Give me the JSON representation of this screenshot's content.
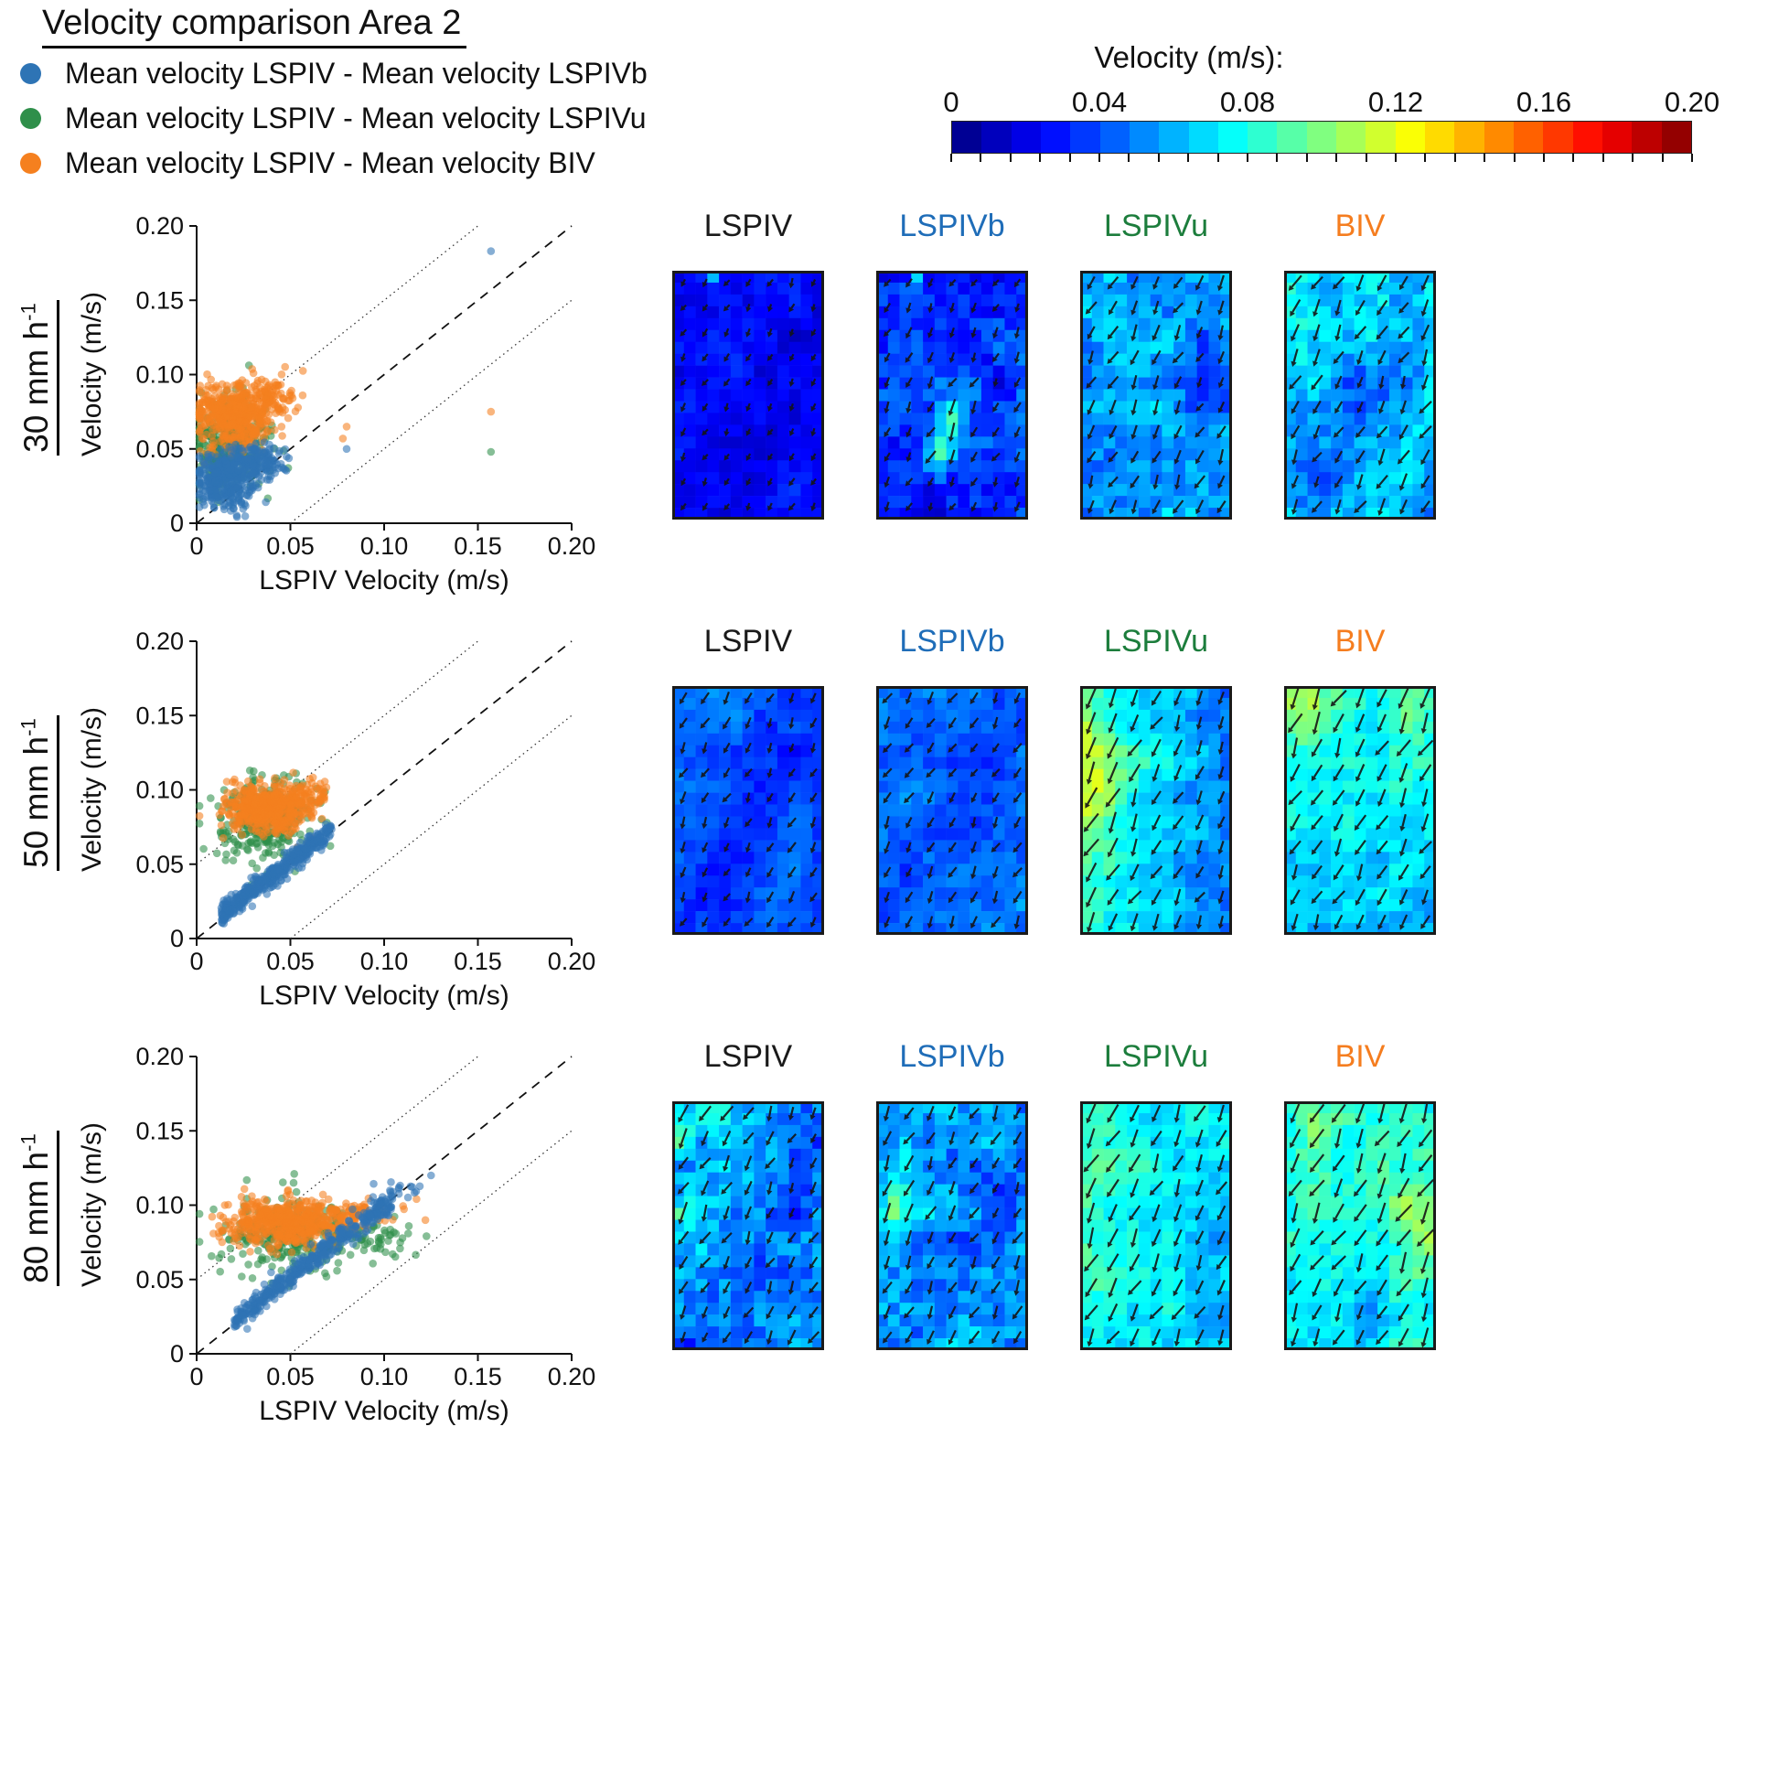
{
  "title": "Velocity comparison Area 2",
  "legend": {
    "items": [
      {
        "label": "Mean velocity LSPIV - Mean velocity LSPIVb",
        "color": "#2e74b5"
      },
      {
        "label": "Mean velocity LSPIV - Mean velocity LSPIVu",
        "color": "#2f8f4a"
      },
      {
        "label": "Mean velocity LSPIV - Mean velocity BIV",
        "color": "#f5801f"
      }
    ]
  },
  "colorbar": {
    "title": "Velocity (m/s):",
    "tick_labels": [
      "0",
      "0.04",
      "0.08",
      "0.12",
      "0.16",
      "0.20"
    ],
    "min": 0,
    "max": 0.2,
    "segments": 25,
    "colormap": "jet"
  },
  "rows": [
    {
      "label": "30 mm h",
      "label_sup": "-1",
      "panels": [
        {
          "name": "LSPIV",
          "color": "#1a1a1a"
        },
        {
          "name": "LSPIVb",
          "color": "#1f6db8"
        },
        {
          "name": "LSPIVu",
          "color": "#1c7d3c"
        },
        {
          "name": "BIV",
          "color": "#f57d1f"
        }
      ]
    },
    {
      "label": "50 mm h",
      "label_sup": "-1",
      "panels": [
        {
          "name": "LSPIV",
          "color": "#1a1a1a"
        },
        {
          "name": "LSPIVb",
          "color": "#1f6db8"
        },
        {
          "name": "LSPIVu",
          "color": "#1c7d3c"
        },
        {
          "name": "BIV",
          "color": "#f57d1f"
        }
      ]
    },
    {
      "label": "80 mm h",
      "label_sup": "-1",
      "panels": [
        {
          "name": "LSPIV",
          "color": "#1a1a1a"
        },
        {
          "name": "LSPIVb",
          "color": "#1f6db8"
        },
        {
          "name": "LSPIVu",
          "color": "#1c7d3c"
        },
        {
          "name": "BIV",
          "color": "#f57d1f"
        }
      ]
    }
  ],
  "chart_data": [
    {
      "rain_rate": "30 mm h-1",
      "scatter": {
        "type": "scatter",
        "xlabel": "LSPIV Velocity (m/s)",
        "ylabel": "Velocity (m/s)",
        "xlim": [
          0,
          0.2
        ],
        "ylim": [
          0,
          0.2
        ],
        "ticks": [
          0,
          0.05,
          0.1,
          0.15,
          0.2
        ],
        "tick_labels": [
          "0",
          "0.05",
          "0.10",
          "0.15",
          "0.20"
        ],
        "reference_lines": {
          "identity": "dashed",
          "offset_band": 0.05
        },
        "series": [
          {
            "name": "LSPIV vs LSPIVb",
            "color": "#2e74b5",
            "clusters": [
              {
                "type": "gauss",
                "cx": 0.015,
                "cy": 0.028,
                "sx": 0.008,
                "sy": 0.01,
                "n": 330
              },
              {
                "type": "gauss",
                "cx": 0.032,
                "cy": 0.041,
                "sx": 0.008,
                "sy": 0.006,
                "n": 140
              }
            ],
            "outliers": [
              [
                0.157,
                0.183
              ],
              [
                0.08,
                0.05
              ]
            ]
          },
          {
            "name": "LSPIV vs LSPIVu",
            "color": "#2f8f4a",
            "clusters": [
              {
                "type": "gauss",
                "cx": 0.018,
                "cy": 0.053,
                "sx": 0.01,
                "sy": 0.014,
                "n": 320
              }
            ],
            "outliers": [
              [
                0.157,
                0.048
              ]
            ]
          },
          {
            "name": "LSPIV vs BIV",
            "color": "#f5801f",
            "clusters": [
              {
                "type": "gauss",
                "cx": 0.02,
                "cy": 0.073,
                "sx": 0.011,
                "sy": 0.011,
                "n": 460
              },
              {
                "type": "gauss",
                "cx": 0.036,
                "cy": 0.086,
                "sx": 0.008,
                "sy": 0.007,
                "n": 80
              }
            ],
            "outliers": [
              [
                0.157,
                0.075
              ],
              [
                0.08,
                0.065
              ],
              [
                0.078,
                0.057
              ]
            ]
          }
        ]
      },
      "heatmaps": [
        {
          "name": "LSPIV",
          "mean": 0.026,
          "noise": 0.006,
          "blob": 0.007,
          "band": [
            1.3,
            0.008
          ],
          "spots": [
            [
              0.28,
              0.04,
              0.13,
              0.012
            ]
          ]
        },
        {
          "name": "LSPIVb",
          "mean": 0.034,
          "noise": 0.011,
          "blob": 0.011,
          "spots": [
            [
              0.28,
              0.04,
              0.13,
              0.012
            ],
            [
              0.5,
              0.6,
              0.05,
              0.07
            ],
            [
              0.42,
              0.75,
              0.045,
              0.05
            ],
            [
              0.62,
              0.5,
              0.035,
              0.05
            ]
          ]
        },
        {
          "name": "LSPIVu",
          "mean": 0.057,
          "noise": 0.011,
          "blob": 0.012,
          "spots": [
            [
              0.8,
              0.45,
              -0.02,
              0.12
            ],
            [
              0.2,
              0.15,
              0.012,
              0.1
            ]
          ]
        },
        {
          "name": "BIV",
          "mean": 0.063,
          "noise": 0.011,
          "blob": 0.012,
          "spots": [
            [
              0.55,
              0.5,
              -0.025,
              0.13
            ],
            [
              0.2,
              0.8,
              -0.015,
              0.1
            ],
            [
              0.1,
              0.1,
              0.015,
              0.08
            ]
          ]
        }
      ]
    },
    {
      "rain_rate": "50 mm h-1",
      "scatter": {
        "type": "scatter",
        "xlabel": "LSPIV Velocity (m/s)",
        "ylabel": "Velocity (m/s)",
        "xlim": [
          0,
          0.2
        ],
        "ylim": [
          0,
          0.2
        ],
        "ticks": [
          0,
          0.05,
          0.1,
          0.15,
          0.2
        ],
        "tick_labels": [
          "0",
          "0.05",
          "0.10",
          "0.15",
          "0.20"
        ],
        "reference_lines": {
          "identity": "dashed",
          "offset_band": 0.05
        },
        "series": [
          {
            "name": "LSPIV vs LSPIVb",
            "color": "#2e74b5",
            "clusters": [
              {
                "type": "line",
                "x0": 0.013,
                "x1": 0.072,
                "slope": 0.95,
                "intercept": 0.004,
                "jitter": 0.0035,
                "n": 450
              }
            ],
            "outliers": []
          },
          {
            "name": "LSPIV vs LSPIVu",
            "color": "#2f8f4a",
            "clusters": [
              {
                "type": "gauss",
                "cx": 0.037,
                "cy": 0.079,
                "sx": 0.012,
                "sy": 0.013,
                "n": 330
              }
            ],
            "outliers": []
          },
          {
            "name": "LSPIV vs BIV",
            "color": "#f5801f",
            "clusters": [
              {
                "type": "gauss",
                "cx": 0.038,
                "cy": 0.087,
                "sx": 0.011,
                "sy": 0.008,
                "n": 480
              },
              {
                "type": "gauss",
                "cx": 0.058,
                "cy": 0.096,
                "sx": 0.008,
                "sy": 0.005,
                "n": 70
              }
            ],
            "outliers": []
          }
        ]
      },
      "heatmaps": [
        {
          "name": "LSPIV",
          "mean": 0.043,
          "noise": 0.006,
          "blob": 0.007,
          "band": [
            1.0,
            0.012
          ],
          "grady": -0.003
        },
        {
          "name": "LSPIVb",
          "mean": 0.048,
          "noise": 0.007,
          "blob": 0.008,
          "band": [
            1.0,
            0.008
          ]
        },
        {
          "name": "LSPIVu",
          "mean": 0.068,
          "noise": 0.008,
          "blob": 0.01,
          "gradx": -0.02,
          "spots": [
            [
              0.08,
              0.35,
              0.03,
              0.18
            ]
          ]
        },
        {
          "name": "BIV",
          "mean": 0.072,
          "noise": 0.008,
          "blob": 0.01,
          "grady": -0.01,
          "spots": [
            [
              0.12,
              0.06,
              0.025,
              0.12
            ],
            [
              0.85,
              0.07,
              0.02,
              0.1
            ]
          ]
        }
      ]
    },
    {
      "rain_rate": "80 mm h-1",
      "scatter": {
        "type": "scatter",
        "xlabel": "LSPIV Velocity (m/s)",
        "ylabel": "Velocity (m/s)",
        "xlim": [
          0,
          0.2
        ],
        "ylim": [
          0,
          0.2
        ],
        "ticks": [
          0,
          0.05,
          0.1,
          0.15,
          0.2
        ],
        "tick_labels": [
          "0",
          "0.05",
          "0.10",
          "0.15",
          "0.20"
        ],
        "reference_lines": {
          "identity": "dashed",
          "offset_band": 0.05
        },
        "series": [
          {
            "name": "LSPIV vs LSPIVb",
            "color": "#2e74b5",
            "clusters": [
              {
                "type": "line",
                "x0": 0.02,
                "x1": 0.105,
                "slope": 0.97,
                "intercept": 0.003,
                "jitter": 0.004,
                "n": 420
              },
              {
                "type": "gauss",
                "cx": 0.112,
                "cy": 0.112,
                "sx": 0.006,
                "sy": 0.005,
                "n": 12
              }
            ],
            "outliers": [
              [
                0.125,
                0.12
              ]
            ]
          },
          {
            "name": "LSPIV vs LSPIVu",
            "color": "#2f8f4a",
            "clusters": [
              {
                "type": "gauss",
                "cx": 0.05,
                "cy": 0.08,
                "sx": 0.018,
                "sy": 0.012,
                "n": 300
              },
              {
                "type": "gauss",
                "cx": 0.092,
                "cy": 0.078,
                "sx": 0.012,
                "sy": 0.007,
                "n": 55
              }
            ],
            "outliers": []
          },
          {
            "name": "LSPIV vs BIV",
            "color": "#f5801f",
            "clusters": [
              {
                "type": "gauss",
                "cx": 0.045,
                "cy": 0.088,
                "sx": 0.015,
                "sy": 0.008,
                "n": 460
              },
              {
                "type": "gauss",
                "cx": 0.08,
                "cy": 0.093,
                "sx": 0.012,
                "sy": 0.006,
                "n": 90
              }
            ],
            "outliers": [
              [
                0.122,
                0.09
              ]
            ]
          }
        ]
      },
      "heatmaps": [
        {
          "name": "LSPIV",
          "mean": 0.055,
          "noise": 0.013,
          "blob": 0.012,
          "band": [
            1.2,
            0.016
          ],
          "spots": [
            [
              0.07,
              0.45,
              0.05,
              0.05
            ],
            [
              0.05,
              0.1,
              0.035,
              0.06
            ],
            [
              0.3,
              0.06,
              0.025,
              0.08
            ]
          ]
        },
        {
          "name": "LSPIVb",
          "mean": 0.057,
          "noise": 0.012,
          "blob": 0.012,
          "band": [
            1.2,
            0.012
          ],
          "spots": [
            [
              0.12,
              0.45,
              0.04,
              0.07
            ]
          ]
        },
        {
          "name": "LSPIVu",
          "mean": 0.074,
          "noise": 0.008,
          "blob": 0.01,
          "gradx": -0.01,
          "grady": -0.005
        },
        {
          "name": "BIV",
          "mean": 0.078,
          "noise": 0.008,
          "blob": 0.01,
          "grady": -0.004,
          "spots": [
            [
              0.2,
              0.08,
              0.02,
              0.1
            ],
            [
              0.5,
              0.9,
              -0.018,
              0.1
            ],
            [
              0.9,
              0.5,
              0.02,
              0.2
            ]
          ]
        }
      ]
    }
  ]
}
